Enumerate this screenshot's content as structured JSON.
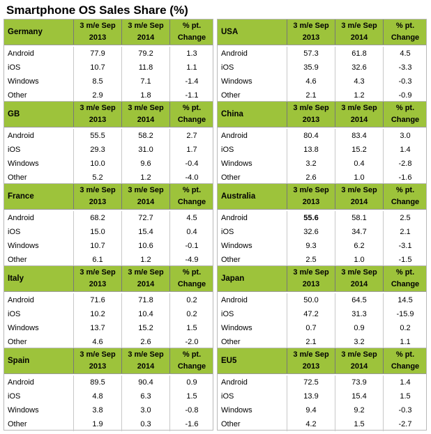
{
  "title": "Smartphone OS Sales Share (%)",
  "header_labels": {
    "col1_line1": "3 m/e Sep",
    "col1_line2": "2013",
    "col2_line1": "3 m/e Sep",
    "col2_line2": "2014",
    "col3_line1": "% pt.",
    "col3_line2": "Change"
  },
  "header_color": "#9dc33b",
  "panels": [
    {
      "country": "Germany",
      "rows": [
        {
          "os": "Android",
          "v2013": "77.9",
          "v2014": "79.2",
          "change": "1.3"
        },
        {
          "os": "iOS",
          "v2013": "10.7",
          "v2014": "11.8",
          "change": "1.1"
        },
        {
          "os": "Windows",
          "v2013": "8.5",
          "v2014": "7.1",
          "change": "-1.4"
        },
        {
          "os": "Other",
          "v2013": "2.9",
          "v2014": "1.8",
          "change": "-1.1"
        }
      ]
    },
    {
      "country": "USA",
      "rows": [
        {
          "os": "Android",
          "v2013": "57.3",
          "v2014": "61.8",
          "change": "4.5"
        },
        {
          "os": "iOS",
          "v2013": "35.9",
          "v2014": "32.6",
          "change": "-3.3"
        },
        {
          "os": "Windows",
          "v2013": "4.6",
          "v2014": "4.3",
          "change": "-0.3"
        },
        {
          "os": "Other",
          "v2013": "2.1",
          "v2014": "1.2",
          "change": "-0.9"
        }
      ]
    },
    {
      "country": "GB",
      "rows": [
        {
          "os": "Android",
          "v2013": "55.5",
          "v2014": "58.2",
          "change": "2.7"
        },
        {
          "os": "iOS",
          "v2013": "29.3",
          "v2014": "31.0",
          "change": "1.7"
        },
        {
          "os": "Windows",
          "v2013": "10.0",
          "v2014": "9.6",
          "change": "-0.4"
        },
        {
          "os": "Other",
          "v2013": "5.2",
          "v2014": "1.2",
          "change": "-4.0"
        }
      ]
    },
    {
      "country": "China",
      "rows": [
        {
          "os": "Android",
          "v2013": "80.4",
          "v2014": "83.4",
          "change": "3.0"
        },
        {
          "os": "iOS",
          "v2013": "13.8",
          "v2014": "15.2",
          "change": "1.4"
        },
        {
          "os": "Windows",
          "v2013": "3.2",
          "v2014": "0.4",
          "change": "-2.8"
        },
        {
          "os": "Other",
          "v2013": "2.6",
          "v2014": "1.0",
          "change": "-1.6"
        }
      ]
    },
    {
      "country": "France",
      "rows": [
        {
          "os": "Android",
          "v2013": "68.2",
          "v2014": "72.7",
          "change": "4.5"
        },
        {
          "os": "iOS",
          "v2013": "15.0",
          "v2014": "15.4",
          "change": "0.4"
        },
        {
          "os": "Windows",
          "v2013": "10.7",
          "v2014": "10.6",
          "change": "-0.1"
        },
        {
          "os": "Other",
          "v2013": "6.1",
          "v2014": "1.2",
          "change": "-4.9"
        }
      ]
    },
    {
      "country": "Australia",
      "rows": [
        {
          "os": "Android",
          "v2013": "55.6",
          "v2014": "58.1",
          "change": "2.5",
          "bold2013": true
        },
        {
          "os": "iOS",
          "v2013": "32.6",
          "v2014": "34.7",
          "change": "2.1"
        },
        {
          "os": "Windows",
          "v2013": "9.3",
          "v2014": "6.2",
          "change": "-3.1"
        },
        {
          "os": "Other",
          "v2013": "2.5",
          "v2014": "1.0",
          "change": "-1.5"
        }
      ]
    },
    {
      "country": "Italy",
      "rows": [
        {
          "os": "Android",
          "v2013": "71.6",
          "v2014": "71.8",
          "change": "0.2"
        },
        {
          "os": "iOS",
          "v2013": "10.2",
          "v2014": "10.4",
          "change": "0.2"
        },
        {
          "os": "Windows",
          "v2013": "13.7",
          "v2014": "15.2",
          "change": "1.5"
        },
        {
          "os": "Other",
          "v2013": "4.6",
          "v2014": "2.6",
          "change": "-2.0"
        }
      ]
    },
    {
      "country": "Japan",
      "rows": [
        {
          "os": "Android",
          "v2013": "50.0",
          "v2014": "64.5",
          "change": "14.5"
        },
        {
          "os": "iOS",
          "v2013": "47.2",
          "v2014": "31.3",
          "change": "-15.9"
        },
        {
          "os": "Windows",
          "v2013": "0.7",
          "v2014": "0.9",
          "change": "0.2"
        },
        {
          "os": "Other",
          "v2013": "2.1",
          "v2014": "3.2",
          "change": "1.1"
        }
      ]
    },
    {
      "country": "Spain",
      "rows": [
        {
          "os": "Android",
          "v2013": "89.5",
          "v2014": "90.4",
          "change": "0.9"
        },
        {
          "os": "iOS",
          "v2013": "4.8",
          "v2014": "6.3",
          "change": "1.5"
        },
        {
          "os": "Windows",
          "v2013": "3.8",
          "v2014": "3.0",
          "change": "-0.8"
        },
        {
          "os": "Other",
          "v2013": "1.9",
          "v2014": "0.3",
          "change": "-1.6"
        }
      ]
    },
    {
      "country": "EU5",
      "rows": [
        {
          "os": "Android",
          "v2013": "72.5",
          "v2014": "73.9",
          "change": "1.4"
        },
        {
          "os": "iOS",
          "v2013": "13.9",
          "v2014": "15.4",
          "change": "1.5"
        },
        {
          "os": "Windows",
          "v2013": "9.4",
          "v2014": "9.2",
          "change": "-0.3"
        },
        {
          "os": "Other",
          "v2013": "4.2",
          "v2014": "1.5",
          "change": "-2.7"
        }
      ]
    }
  ]
}
